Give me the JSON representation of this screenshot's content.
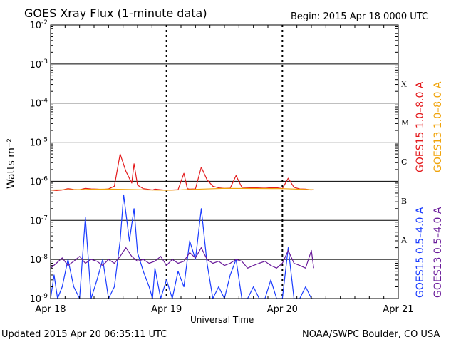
{
  "header": {
    "title": "GOES Xray Flux (1-minute data)",
    "begin": "Begin:  2015 Apr 18 0000 UTC"
  },
  "footer": {
    "updated": "Updated 2015 Apr 20 06:35:11 UTC",
    "credit": "NOAA/SWPC Boulder, CO USA"
  },
  "chart_data": {
    "type": "line",
    "title": "GOES Xray Flux (1-minute data)",
    "xlabel": "Universal Time",
    "ylabel": "Watts m⁻²",
    "y_scale": "log",
    "ylim": [
      1e-09,
      0.01
    ],
    "xlim": [
      0,
      3
    ],
    "x_ticks": [
      {
        "value": 0,
        "label": "Apr 18"
      },
      {
        "value": 1,
        "label": "Apr 19"
      },
      {
        "value": 2,
        "label": "Apr 20"
      },
      {
        "value": 3,
        "label": "Apr 21"
      }
    ],
    "y_ticks": [
      {
        "exp": -9,
        "label": "10",
        "sup": "-9"
      },
      {
        "exp": -8,
        "label": "10",
        "sup": "-8"
      },
      {
        "exp": -7,
        "label": "10",
        "sup": "-7"
      },
      {
        "exp": -6,
        "label": "10",
        "sup": "-6"
      },
      {
        "exp": -5,
        "label": "10",
        "sup": "-5"
      },
      {
        "exp": -4,
        "label": "10",
        "sup": "-4"
      },
      {
        "exp": -3,
        "label": "10",
        "sup": "-3"
      },
      {
        "exp": -2,
        "label": "10",
        "sup": "-2"
      }
    ],
    "flare_classes": [
      {
        "label": "A",
        "exp": -8
      },
      {
        "label": "B",
        "exp": -7
      },
      {
        "label": "C",
        "exp": -6
      },
      {
        "label": "M",
        "exp": -5
      },
      {
        "label": "X",
        "exp": -4
      }
    ],
    "grid": true,
    "legend_position": "right",
    "series": [
      {
        "name": "GOES15 1.0–8.0 A",
        "color": "#e31a1c",
        "x": [
          0,
          0.05,
          0.1,
          0.15,
          0.2,
          0.25,
          0.3,
          0.35,
          0.4,
          0.45,
          0.5,
          0.55,
          0.6,
          0.65,
          0.7,
          0.72,
          0.75,
          0.8,
          0.85,
          0.88,
          0.9,
          0.95,
          1.0,
          1.05,
          1.1,
          1.15,
          1.18,
          1.2,
          1.25,
          1.3,
          1.35,
          1.4,
          1.45,
          1.5,
          1.55,
          1.6,
          1.65,
          1.7,
          1.75,
          1.8,
          1.85,
          1.9,
          1.95,
          2.0,
          2.05,
          2.1,
          2.15,
          2.2,
          2.25,
          2.27
        ],
        "y": [
          6e-07,
          5.8e-07,
          6e-07,
          6.5e-07,
          6.2e-07,
          6.1e-07,
          6.6e-07,
          6.4e-07,
          6.3e-07,
          6.2e-07,
          6.4e-07,
          7.5e-07,
          5e-06,
          1.8e-06,
          9e-07,
          2.8e-06,
          8e-07,
          6.5e-07,
          6.2e-07,
          6e-07,
          6.3e-07,
          6.1e-07,
          5.9e-07,
          6e-07,
          6.1e-07,
          1.6e-06,
          6.5e-07,
          6.3e-07,
          6.4e-07,
          2.3e-06,
          1.1e-06,
          7.5e-07,
          6.8e-07,
          6.6e-07,
          6.7e-07,
          1.4e-06,
          7e-07,
          6.9e-07,
          6.8e-07,
          6.9e-07,
          7e-07,
          6.8e-07,
          6.9e-07,
          6.5e-07,
          1.2e-06,
          7e-07,
          6.4e-07,
          6.3e-07,
          6e-07,
          6.2e-07
        ]
      },
      {
        "name": "GOES13 1.0–8.0 A",
        "color": "#f0a30a",
        "x": [
          0,
          0.5,
          1.0,
          1.5,
          2.0,
          2.27
        ],
        "y": [
          6e-07,
          6.3e-07,
          5.9e-07,
          6.6e-07,
          6.5e-07,
          6.1e-07
        ]
      },
      {
        "name": "GOES15 0.5–4.0 A",
        "color": "#1a3cff",
        "x": [
          0,
          0.03,
          0.06,
          0.1,
          0.15,
          0.2,
          0.25,
          0.3,
          0.35,
          0.4,
          0.45,
          0.5,
          0.55,
          0.6,
          0.63,
          0.68,
          0.72,
          0.75,
          0.8,
          0.85,
          0.88,
          0.9,
          0.95,
          1.0,
          1.05,
          1.1,
          1.15,
          1.2,
          1.25,
          1.3,
          1.35,
          1.4,
          1.45,
          1.5,
          1.55,
          1.6,
          1.65,
          1.7,
          1.75,
          1.8,
          1.85,
          1.9,
          1.95,
          2.0,
          2.05,
          2.1,
          2.15,
          2.2,
          2.25,
          2.27
        ],
        "y": [
          1e-09,
          4e-09,
          1e-09,
          2e-09,
          1e-08,
          2e-09,
          1e-09,
          1.2e-07,
          1e-09,
          3e-09,
          1e-08,
          1e-09,
          2e-09,
          3e-08,
          4.5e-07,
          3e-08,
          2e-07,
          1.5e-08,
          5e-09,
          2e-09,
          1e-09,
          6e-09,
          1e-09,
          3e-09,
          1e-09,
          5e-09,
          2e-09,
          3e-08,
          1e-08,
          2e-07,
          8e-09,
          1e-09,
          2e-09,
          1e-09,
          4e-09,
          1e-08,
          1e-09,
          1e-09,
          2e-09,
          1e-09,
          1e-09,
          3e-09,
          1e-09,
          1e-09,
          2e-08,
          1e-09,
          1e-09,
          2e-09,
          1e-09,
          1e-09
        ]
      },
      {
        "name": "GOES13 0.5–4.0 A",
        "color": "#6a1b9a",
        "x": [
          0,
          0.05,
          0.1,
          0.15,
          0.2,
          0.25,
          0.3,
          0.35,
          0.4,
          0.45,
          0.5,
          0.55,
          0.6,
          0.65,
          0.7,
          0.75,
          0.8,
          0.85,
          0.9,
          0.95,
          1.0,
          1.05,
          1.1,
          1.15,
          1.2,
          1.25,
          1.3,
          1.35,
          1.4,
          1.45,
          1.5,
          1.55,
          1.6,
          1.65,
          1.7,
          1.75,
          1.8,
          1.85,
          1.9,
          1.95,
          2.0,
          2.05,
          2.1,
          2.15,
          2.2,
          2.25,
          2.27
        ],
        "y": [
          6e-09,
          8e-09,
          1.1e-08,
          7e-09,
          9e-09,
          1.2e-08,
          8e-09,
          1e-08,
          9e-09,
          7e-09,
          1e-08,
          8e-09,
          1.2e-08,
          2e-08,
          1.2e-08,
          9e-09,
          1e-08,
          8e-09,
          9e-09,
          1.2e-08,
          7e-09,
          1e-08,
          8e-09,
          9e-09,
          1.5e-08,
          1.1e-08,
          2e-08,
          1e-08,
          8e-09,
          9e-09,
          7e-09,
          8e-09,
          1e-08,
          9e-09,
          6e-09,
          7e-09,
          8e-09,
          9e-09,
          7e-09,
          6e-09,
          8e-09,
          1.7e-08,
          8e-09,
          7e-09,
          6e-09,
          1.7e-08,
          6e-09
        ]
      }
    ]
  }
}
